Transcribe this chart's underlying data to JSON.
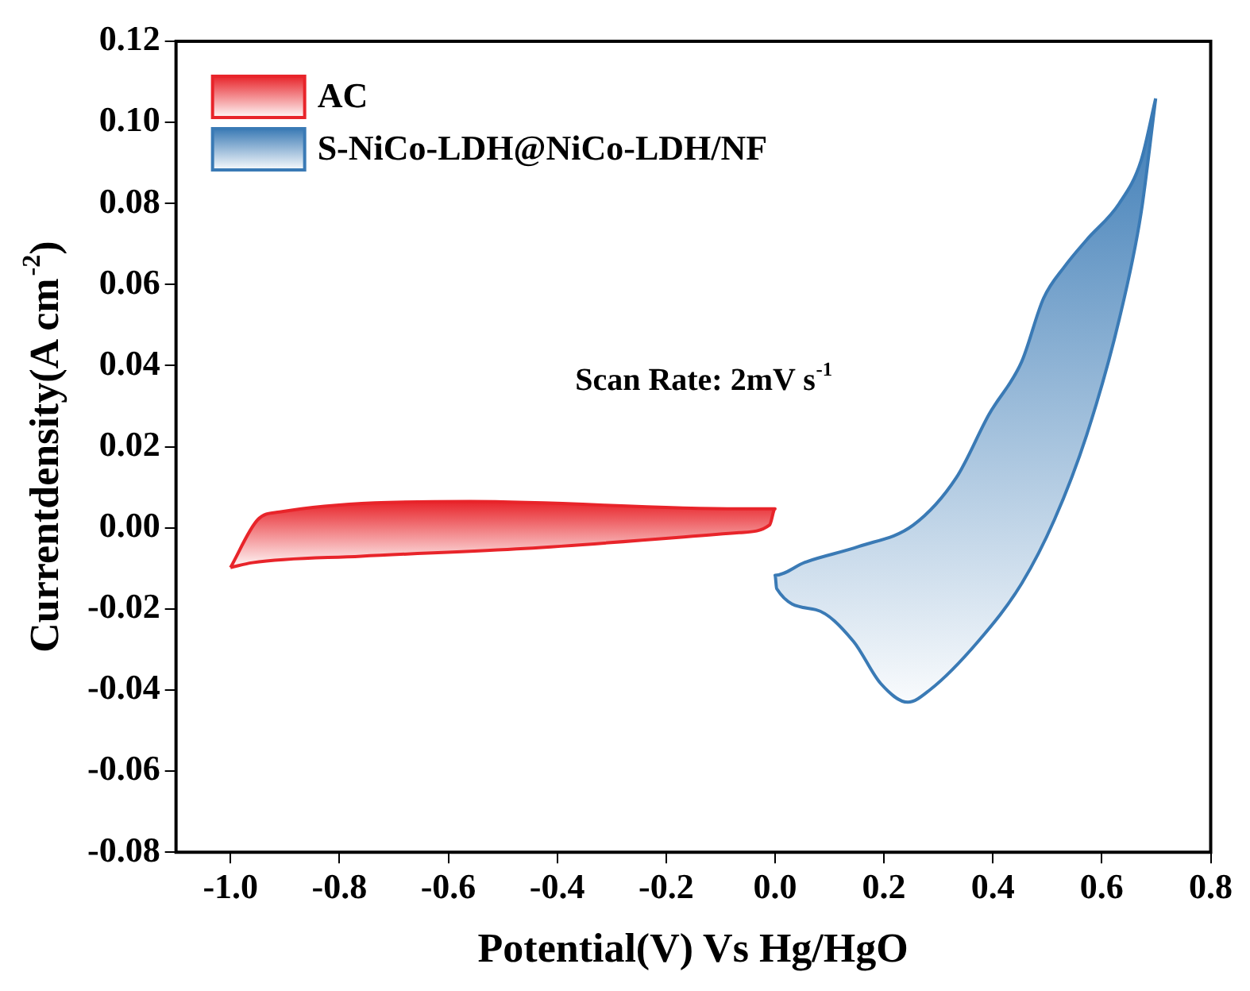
{
  "chart_data": {
    "type": "area",
    "xlabel": "Potential(V) Vs Hg/HgO",
    "ylabel": "Currentdensity(A cm$^{-2}$)",
    "annotations": [
      "Scan Rate: 2mV s$^{-1}$"
    ],
    "xlim": [
      -1.1,
      0.8
    ],
    "ylim": [
      -0.08,
      0.12
    ],
    "xticks": [
      {
        "value": -1.0,
        "label": "-1.0"
      },
      {
        "value": -0.8,
        "label": "-0.8"
      },
      {
        "value": -0.6,
        "label": "-0.6"
      },
      {
        "value": -0.4,
        "label": "-0.4"
      },
      {
        "value": -0.2,
        "label": "-0.2"
      },
      {
        "value": 0,
        "label": "0.0"
      },
      {
        "value": 0.2,
        "label": "0.2"
      },
      {
        "value": 0.4,
        "label": "0.4"
      },
      {
        "value": 0.6,
        "label": "0.6"
      },
      {
        "value": 0.8,
        "label": "0.8"
      }
    ],
    "yticks": [
      {
        "value": -0.08,
        "label": "-0.08"
      },
      {
        "value": -0.06,
        "label": "-0.06"
      },
      {
        "value": -0.04,
        "label": "-0.04"
      },
      {
        "value": -0.02,
        "label": "-0.02"
      },
      {
        "value": 0,
        "label": "0.00"
      },
      {
        "value": 0.02,
        "label": "0.02"
      },
      {
        "value": 0.04,
        "label": "0.04"
      },
      {
        "value": 0.06,
        "label": "0.06"
      },
      {
        "value": 0.08,
        "label": "0.08"
      },
      {
        "value": 0.1,
        "label": "0.10"
      },
      {
        "value": 0.12,
        "label": "0.12"
      }
    ],
    "grid": false,
    "legend": "top left",
    "marker": "none",
    "line_style": "solid",
    "series": [
      {
        "name": "AC",
        "color": "#e8242a",
        "x": [
          -1.0,
          -0.95,
          -0.91,
          -0.56,
          -0.066,
          0,
          -0.01,
          -0.066,
          -0.46,
          -0.76,
          -0.96,
          -1.0
        ],
        "values": [
          -0.0098,
          0.002,
          0.0039,
          0.0065,
          0.0047,
          0.0047,
          0.0007,
          -0.0012,
          -0.0051,
          -0.007,
          -0.0086,
          -0.0098
        ]
      },
      {
        "name": "S-NiCo-LDH@NiCo-LDH/NF",
        "color": "#3a7ab5",
        "x": [
          0.699,
          0.672,
          0.632,
          0.572,
          0.532,
          0.493,
          0.453,
          0.393,
          0.333,
          0.254,
          0.154,
          0.055,
          0,
          0.003,
          0.075,
          0.144,
          0.194,
          0.244,
          0.284,
          0.373,
          0.453,
          0.513,
          0.572,
          0.632,
          0.672,
          0.699
        ],
        "values": [
          0.1059,
          0.0905,
          0.08,
          0.071,
          0.0645,
          0.0566,
          0.041,
          0.028,
          0.0124,
          0.0007,
          -0.0046,
          -0.0085,
          -0.0117,
          -0.015,
          -0.0202,
          -0.028,
          -0.0384,
          -0.043,
          -0.04,
          -0.028,
          -0.0137,
          0.002,
          0.0228,
          0.0514,
          0.0775,
          0.1059
        ]
      }
    ]
  }
}
